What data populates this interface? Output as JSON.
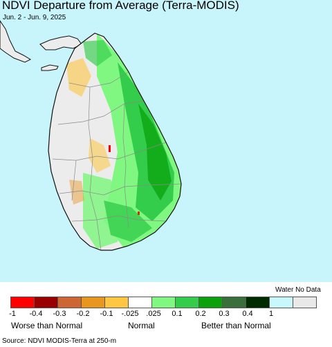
{
  "title": "NDVI Departure from Average (Terra-MODIS)",
  "subtitle": "Jun. 2 - Jun. 9, 2025",
  "colors": {
    "ocean": "#c8f4fb",
    "land_neutral": "#ececec",
    "coast": "#111111",
    "boundary": "#8a8a8a"
  },
  "legend": {
    "water_no_data_label": "Water No Data",
    "swatches": [
      {
        "name": "swatch-1",
        "color": "#fe0000"
      },
      {
        "name": "swatch-2",
        "color": "#990000"
      },
      {
        "name": "swatch-3",
        "color": "#cc6633"
      },
      {
        "name": "swatch-4",
        "color": "#e8961e"
      },
      {
        "name": "swatch-5",
        "color": "#ffc642"
      },
      {
        "name": "swatch-6",
        "color": "#ffffff"
      },
      {
        "name": "swatch-7",
        "color": "#80f780"
      },
      {
        "name": "swatch-8",
        "color": "#33cc4b"
      },
      {
        "name": "swatch-9",
        "color": "#0aa10a"
      },
      {
        "name": "swatch-10",
        "color": "#3a6e3a"
      },
      {
        "name": "swatch-11",
        "color": "#002b00"
      },
      {
        "name": "swatch-12",
        "color": "#c8f8fc"
      },
      {
        "name": "swatch-13",
        "color": "#e9e9e9"
      }
    ],
    "ticks": [
      "-1",
      "-0.4",
      "-0.3",
      "-0.2",
      "-0.1",
      "-.025",
      ".025",
      "0.1",
      "0.2",
      "0.3",
      "0.4",
      "1"
    ],
    "worse_label": "Worse than Normal",
    "normal_label": "Normal",
    "better_label": "Better than Normal"
  },
  "source": "Source: NDVI MODIS-Terra at 250-m"
}
